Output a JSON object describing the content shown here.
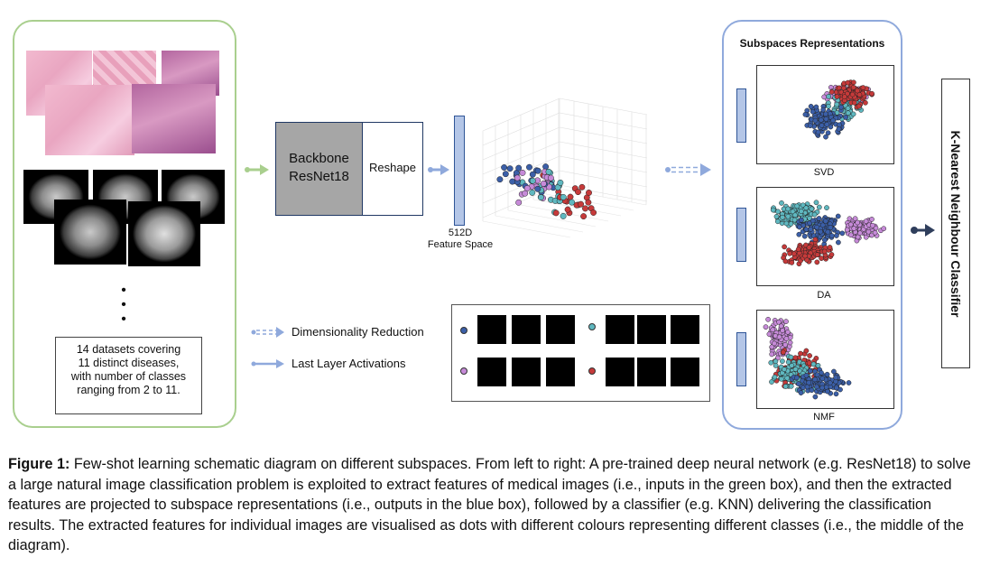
{
  "input": {
    "description_box": "14 datasets covering 11 distinct diseases, with number of classes ranging from 2 to 11.",
    "desc_lines": [
      "14 datasets covering",
      "11 distinct diseases,",
      "with number of classes",
      "ranging from 2 to 11."
    ]
  },
  "backbone": {
    "line1": "Backbone",
    "line2": "ResNet18"
  },
  "reshape": {
    "label": "Reshape"
  },
  "feature": {
    "line1": "512D",
    "line2": "Feature Space"
  },
  "legend": {
    "dim_reduction": "Dimensionality Reduction",
    "last_layer": "Last Layer Activations"
  },
  "classes": [
    {
      "color": "#3b5fa8"
    },
    {
      "color": "#5fb8c0"
    },
    {
      "color": "#c68ad8"
    },
    {
      "color": "#c63a3a"
    }
  ],
  "subspaces": {
    "title": "Subspaces Representations",
    "plots": [
      {
        "label": "SVD"
      },
      {
        "label": "DA"
      },
      {
        "label": "NMF"
      }
    ]
  },
  "classifier": {
    "label": "K-Nearest Neighbour Classifier"
  },
  "caption": {
    "prefix": "Figure 1:",
    "text": " Few-shot learning schematic diagram on different subspaces. From left to right: A pre-trained deep neural network (e.g. ResNet18) to solve a large natural image classification problem is exploited to extract features of medical images (i.e., inputs in the green box), and then the extracted features are projected to subspace representations (i.e., outputs in the blue box), followed by a classifier (e.g. KNN) delivering the classification results. The extracted features for individual images are visualised as dots with different colours representing different classes (i.e., the middle of the diagram)."
  }
}
